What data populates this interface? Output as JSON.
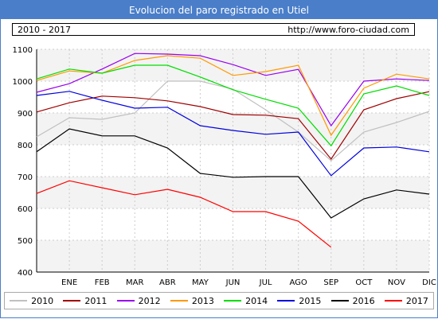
{
  "title": "Evolucion del paro registrado en Utiel",
  "info": {
    "range": "2010 - 2017",
    "url": "http://www.foro-ciudad.com"
  },
  "chart_data": {
    "type": "line",
    "title": "Evolucion del paro registrado en Utiel",
    "categories": [
      "ENE",
      "FEB",
      "MAR",
      "ABR",
      "MAY",
      "JUN",
      "JUL",
      "AGO",
      "SEP",
      "OCT",
      "NOV",
      "DIC"
    ],
    "y_ticks": [
      400,
      500,
      600,
      700,
      800,
      900,
      1000,
      1100
    ],
    "ylim": [
      400,
      1100
    ],
    "grid": true,
    "legend_position": "bottom",
    "series": [
      {
        "name": "2010",
        "color": "#c0c0c0",
        "values": [
          885,
          880,
          900,
          1000,
          1000,
          975,
          910,
          840,
          750,
          840,
          870,
          905
        ],
        "start": 825
      },
      {
        "name": "2011",
        "color": "#a00000",
        "values": [
          932,
          953,
          948,
          938,
          920,
          895,
          893,
          882,
          755,
          910,
          945,
          967
        ],
        "start": 903
      },
      {
        "name": "2012",
        "color": "#9900ee",
        "values": [
          992,
          1038,
          1087,
          1085,
          1080,
          1052,
          1018,
          1037,
          860,
          1000,
          1007,
          1002
        ],
        "start": 965
      },
      {
        "name": "2013",
        "color": "#ff9900",
        "values": [
          1032,
          1025,
          1065,
          1080,
          1072,
          1018,
          1030,
          1050,
          830,
          978,
          1022,
          1007
        ],
        "start": 1002
      },
      {
        "name": "2014",
        "color": "#00dd00",
        "values": [
          1038,
          1025,
          1050,
          1050,
          1013,
          973,
          943,
          915,
          797,
          960,
          985,
          955
        ],
        "start": 1007
      },
      {
        "name": "2015",
        "color": "#0000dd",
        "values": [
          968,
          940,
          915,
          918,
          860,
          845,
          833,
          840,
          703,
          790,
          793,
          778
        ],
        "start": 955
      },
      {
        "name": "2016",
        "color": "#000000",
        "values": [
          850,
          828,
          828,
          790,
          710,
          698,
          700,
          700,
          570,
          630,
          658,
          645
        ],
        "start": 778
      },
      {
        "name": "2017",
        "color": "#ff0000",
        "values": [
          687,
          665,
          643,
          660,
          635,
          590,
          590,
          560,
          478,
          null,
          null,
          null
        ],
        "start": 647
      }
    ]
  }
}
